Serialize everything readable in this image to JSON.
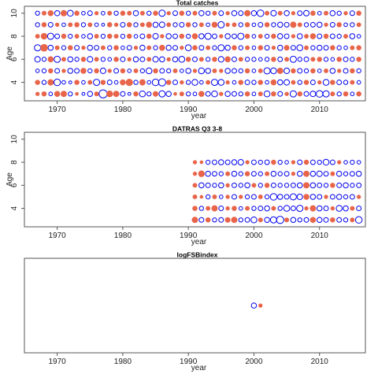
{
  "chart_data": [
    {
      "type": "scatter",
      "title": "Total catches",
      "xlabel": "year",
      "ylabel": "Age",
      "xlim": [
        1965,
        2017
      ],
      "ylim": [
        2.4,
        10.6
      ],
      "x_ticks": [
        1970,
        1980,
        1990,
        2000,
        2010
      ],
      "y_ticks": [
        4,
        6,
        8,
        10
      ],
      "marker_legend": "bubble plot of residuals: open blue circles = positive, filled red circles = negative; size ~ magnitude",
      "ages": [
        3,
        4,
        5,
        6,
        7,
        8,
        9,
        10
      ],
      "years": [
        1967,
        2016
      ],
      "series": [
        {
          "name": "residual",
          "rows": {
            "3": [
              -0.4,
              -0.6,
              0.3,
              -0.8,
              -0.9,
              0.4,
              -0.3,
              0.2,
              0.6,
              -0.5,
              1.5,
              -1.0,
              -0.9,
              0.5,
              0.2,
              -0.6,
              0.8,
              0.4,
              -0.7,
              0.9,
              0.6,
              -0.3,
              -0.5,
              0.4,
              0.3,
              -0.8,
              0.5,
              0.8,
              -0.4,
              0.6,
              0.5,
              0.4,
              -0.6,
              0.3,
              -0.5,
              0.8,
              -0.6,
              0.5,
              -0.4,
              0.9,
              -0.6,
              0.5,
              0.7,
              1.0,
              0.9,
              -0.5,
              0.4,
              -0.6,
              0.3,
              -0.6
            ],
            "4": [
              -0.6,
              0.4,
              -0.9,
              1.0,
              0.3,
              0.2,
              -0.6,
              0.3,
              -0.5,
              0.9,
              -0.6,
              0.5,
              0.3,
              -0.8,
              -1.2,
              0.4,
              -0.9,
              0.3,
              1.0,
              1.2,
              -0.6,
              0.5,
              -0.4,
              0.4,
              0.8,
              0.3,
              -0.5,
              0.9,
              0.8,
              -0.4,
              0.3,
              -0.6,
              0.5,
              0.4,
              -0.6,
              0.3,
              -0.8,
              0.6,
              0.7,
              -0.5,
              0.4,
              -0.6,
              0.5,
              -0.4,
              0.8,
              -0.6,
              0.5,
              0.4,
              -0.5,
              0.3
            ],
            "5": [
              0.3,
              0.4,
              -0.6,
              0.5,
              -0.4,
              0.6,
              0.5,
              -0.8,
              0.4,
              -0.6,
              0.7,
              -0.4,
              0.5,
              -0.6,
              0.3,
              -0.5,
              0.4,
              0.8,
              -0.6,
              0.5,
              0.4,
              -0.5,
              0.3,
              0.6,
              -0.4,
              0.8,
              0.6,
              -0.5,
              -0.4,
              0.6,
              0.5,
              0.4,
              -0.6,
              0.3,
              -0.5,
              0.9,
              0.8,
              -0.9,
              0.7,
              -0.6,
              0.5,
              0.4,
              -0.6,
              0.3,
              -0.5,
              0.6,
              -0.4,
              0.5,
              -0.6,
              0.4
            ],
            "6": [
              0.7,
              0.4,
              -0.8,
              0.9,
              -0.5,
              0.6,
              0.4,
              -0.6,
              0.7,
              -0.5,
              0.4,
              0.3,
              -0.6,
              0.5,
              -0.4,
              0.6,
              0.5,
              -0.5,
              0.7,
              0.6,
              -0.4,
              0.6,
              0.8,
              -0.6,
              0.5,
              -0.5,
              0.4,
              -0.6,
              0.7,
              -0.8,
              0.5,
              -0.5,
              0.4,
              0.4,
              0.3,
              0.4,
              -0.6,
              0.5,
              -0.5,
              0.9,
              0.4,
              0.5,
              -0.5,
              -0.6,
              0.4,
              0.3,
              -0.6,
              0.5,
              0.4,
              -0.6
            ],
            "7": [
              0.9,
              -1.3,
              0.6,
              -0.5,
              0.4,
              -0.6,
              0.5,
              -0.4,
              0.6,
              0.5,
              -0.5,
              0.4,
              -0.6,
              0.3,
              0.5,
              -0.4,
              0.6,
              -0.5,
              0.4,
              -0.8,
              0.6,
              0.5,
              -0.4,
              0.8,
              -0.6,
              0.5,
              -0.5,
              0.4,
              0.9,
              0.6,
              -0.6,
              0.4,
              -0.5,
              0.3,
              -0.6,
              0.5,
              -0.4,
              0.6,
              -0.7,
              0.5,
              0.8,
              -0.5,
              0.4,
              0.6,
              0.5,
              -0.6,
              0.4,
              0.3,
              -0.5,
              -0.6
            ],
            "8": [
              -0.5,
              -1.0,
              0.9,
              0.5,
              -0.6,
              0.4,
              -0.5,
              0.3,
              0.6,
              -0.5,
              0.4,
              -0.6,
              -0.5,
              0.4,
              -0.6,
              0.3,
              0.5,
              -0.6,
              0.7,
              -0.4,
              0.6,
              0.5,
              -0.6,
              0.4,
              -0.8,
              0.6,
              0.9,
              0.5,
              -0.4,
              0.6,
              0.5,
              0.9,
              -0.6,
              0.3,
              -0.5,
              0.4,
              -0.6,
              0.6,
              0.5,
              -0.4,
              0.6,
              -0.5,
              -0.8,
              0.5,
              -0.6,
              0.5,
              0.4,
              -0.5,
              0.6,
              0.3
            ],
            "9": [
              0.4,
              -0.6,
              0.5,
              -0.4,
              0.3,
              -0.5,
              -0.6,
              0.4,
              -0.5,
              0.3,
              0.2,
              -0.6,
              -0.4,
              0.5,
              -0.6,
              0.4,
              -0.5,
              -0.8,
              0.6,
              0.7,
              -0.5,
              0.4,
              0.5,
              -0.6,
              0.4,
              -0.5,
              0.3,
              -0.8,
              0.9,
              -0.4,
              -0.5,
              0.4,
              -0.6,
              0.3,
              0.5,
              -0.6,
              0.4,
              0.6,
              0.5,
              -0.9,
              -0.5,
              0.4,
              0.5,
              0.6,
              -0.4,
              0.5,
              -0.6,
              0.3,
              0.4,
              -0.5
            ],
            "10": [
              0.4,
              -0.5,
              -0.8,
              0.6,
              -0.9,
              0.8,
              -0.6,
              0.3,
              0.5,
              -0.4,
              0.3,
              -0.5,
              0.4,
              -0.6,
              -0.5,
              0.6,
              -0.5,
              0.4,
              -0.6,
              0.9,
              -0.4,
              0.5,
              -0.6,
              0.4,
              -0.5,
              0.6,
              0.4,
              -0.5,
              0.5,
              -0.4,
              0.6,
              0.5,
              -0.9,
              0.6,
              1.0,
              -0.5,
              0.7,
              -0.5,
              0.6,
              -0.4,
              0.5,
              0.7,
              -0.6,
              0.3,
              -0.5,
              0.6,
              0.4,
              -0.4,
              0.5,
              -0.6
            ]
          }
        }
      ]
    },
    {
      "type": "scatter",
      "title": "DATRAS Q3 3-8",
      "xlabel": "year",
      "ylabel": "Age",
      "xlim": [
        1965,
        2017
      ],
      "ylim": [
        2.4,
        10.6
      ],
      "x_ticks": [
        1970,
        1980,
        1990,
        2000,
        2010
      ],
      "y_ticks": [
        4,
        6,
        8,
        10
      ],
      "ages": [
        3,
        4,
        5,
        6,
        7,
        8
      ],
      "years": [
        1991,
        2016
      ],
      "series": [
        {
          "name": "residual",
          "rows": {
            "3": [
              -0.9,
              0.5,
              -0.6,
              0.4,
              0.5,
              -0.7,
              -0.9,
              0.4,
              0.5,
              0.8,
              -0.5,
              0.6,
              0.9,
              1.2,
              -0.5,
              0.6,
              0.4,
              0.5,
              -0.8,
              0.6,
              0.5,
              -0.6,
              0.5,
              0.4,
              -0.5,
              1.0
            ],
            "4": [
              -0.6,
              0.4,
              -0.5,
              -0.9,
              0.5,
              -0.4,
              -0.6,
              0.3,
              -0.5,
              0.4,
              0.5,
              0.6,
              -0.5,
              0.4,
              0.8,
              0.5,
              0.9,
              -0.4,
              -0.9,
              0.6,
              0.5,
              -0.4,
              0.8,
              0.6,
              -0.5,
              0.5
            ],
            "5": [
              -0.5,
              -0.3,
              0.4,
              -0.5,
              0.3,
              -0.4,
              0.5,
              -0.4,
              0.4,
              0.5,
              -0.5,
              0.4,
              1.0,
              0.6,
              0.5,
              0.9,
              0.7,
              -0.8,
              0.6,
              0.5,
              -0.4,
              0.5,
              0.6,
              0.4,
              0.5,
              -0.4
            ],
            "6": [
              -0.5,
              0.6,
              0.5,
              0.4,
              0.6,
              -0.4,
              0.5,
              0.4,
              0.6,
              -0.5,
              0.4,
              -0.6,
              0.5,
              0.4,
              0.4,
              0.5,
              0.6,
              -0.9,
              0.6,
              0.5,
              0.4,
              -0.6,
              0.5,
              0.6,
              0.4,
              0.5
            ],
            "7": [
              -0.4,
              -1.0,
              0.6,
              0.5,
              0.4,
              -0.5,
              0.6,
              0.4,
              -0.6,
              0.5,
              0.4,
              -0.5,
              0.6,
              0.4,
              0.5,
              -0.4,
              0.6,
              -0.9,
              0.6,
              0.7,
              0.5,
              -0.5,
              0.6,
              0.4,
              0.5,
              0.6
            ],
            "8": [
              -0.4,
              -0.3,
              0.4,
              0.5,
              0.6,
              0.5,
              0.6,
              0.7,
              -0.4,
              0.5,
              0.4,
              0.5,
              -0.6,
              0.4,
              0.3,
              -0.4,
              0.5,
              -0.6,
              0.5,
              0.4,
              0.8,
              0.5,
              -0.4,
              0.3,
              0.4,
              0.3
            ]
          }
        }
      ]
    },
    {
      "type": "scatter",
      "title": "logFSBindex",
      "xlabel": "year",
      "ylabel": "",
      "xlim": [
        1965,
        2017
      ],
      "ylim": [
        -1,
        1
      ],
      "x_ticks": [
        1970,
        1980,
        1990,
        2000,
        2010
      ],
      "y_ticks": [],
      "points": [
        {
          "year": 2000,
          "value": 0,
          "residual": 0.6
        },
        {
          "year": 2001,
          "value": 0,
          "residual": -0.4
        }
      ]
    }
  ],
  "colors": {
    "positive": "#0000ee",
    "negative": "#e8654a",
    "frame": "#555555"
  }
}
